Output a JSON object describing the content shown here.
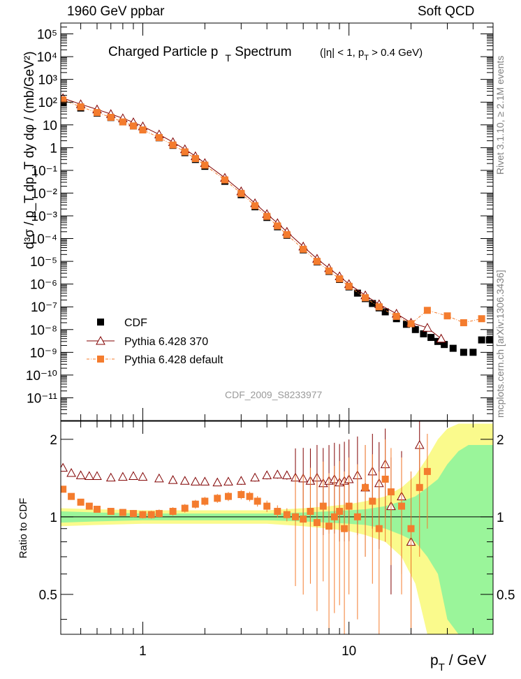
{
  "header": {
    "left": "1960 GeV ppbar",
    "right": "Soft QCD"
  },
  "side_texts": {
    "rivet": "Rivet 3.1.10, ≥ 2.1M events",
    "mcplots": "mcplots.cern.ch [arXiv:1306.3436]"
  },
  "chart_data": [
    {
      "type": "scatter",
      "title": "Charged Particle p_T Spectrum",
      "title_parts": {
        "main": "Charged Particle p",
        "sub": "T",
        "after": " Spectrum",
        "cuts": "(|η| < 1, p",
        "cuts_sub": "T",
        "cuts_after": " > 0.4 GeV)"
      },
      "watermark": "CDF_2009_S8233977",
      "ylabel": "d³σ / p_T dp_T dy dφ / (mb/GeV²)",
      "xscale": "log",
      "yscale": "log",
      "xlim": [
        0.4,
        50
      ],
      "ylim": [
        1e-12,
        300000.0
      ],
      "ytick_labels": [
        "10⁻¹¹",
        "10⁻¹⁰",
        "10⁻⁹",
        "10⁻⁸",
        "10⁻⁷",
        "10⁻⁶",
        "10⁻⁵",
        "10⁻⁴",
        "10⁻³",
        "10⁻²",
        "10⁻¹",
        "1",
        "10",
        "10²",
        "10³",
        "10⁴",
        "10⁵"
      ],
      "legend": {
        "position": "lower-left",
        "entries": [
          "CDF",
          "Pythia 6.428 370",
          "Pythia 6.428 default"
        ]
      },
      "series": [
        {
          "name": "CDF",
          "color": "#000000",
          "marker": "square",
          "x": [
            0.41,
            0.5,
            0.6,
            0.7,
            0.8,
            0.9,
            1.0,
            1.2,
            1.4,
            1.6,
            1.8,
            2.0,
            2.5,
            3.0,
            3.5,
            4.0,
            4.5,
            5.0,
            6.0,
            7.0,
            8.0,
            9.0,
            10.0,
            11.0,
            12.0,
            13.0,
            14.0,
            15.0,
            17.0,
            19.0,
            21.0,
            23.0,
            25.0,
            27.0,
            29.0,
            32.0,
            36.0,
            40.0,
            44.0,
            48.0
          ],
          "y": [
            95,
            55,
            33,
            21,
            13.5,
            9.0,
            6.0,
            2.7,
            1.25,
            0.6,
            0.3,
            0.15,
            0.033,
            0.0085,
            0.0025,
            0.00085,
            0.00033,
            0.00014,
            3.2e-05,
            9.5e-06,
            3.6e-06,
            1.6e-06,
            7.5e-07,
            4e-07,
            2.3e-07,
            1.4e-07,
            9e-08,
            6e-08,
            3e-08,
            1.7e-08,
            1e-08,
            6.5e-09,
            4.5e-09,
            3e-09,
            2.2e-09,
            1.5e-09,
            1e-09,
            1e-09,
            3.5e-09,
            3.5e-09
          ]
        },
        {
          "name": "Pythia 6.428 370",
          "color": "#800000",
          "marker": "open-triangle",
          "x": [
            0.41,
            0.5,
            0.6,
            0.7,
            0.8,
            0.9,
            1.0,
            1.2,
            1.4,
            1.6,
            1.8,
            2.0,
            2.5,
            3.0,
            3.5,
            4.0,
            4.5,
            5.0,
            6.0,
            7.0,
            8.0,
            9.0,
            10.0,
            12.0,
            14.0,
            17.0,
            20.0,
            24.0,
            28.0
          ],
          "y": [
            150,
            81,
            48,
            30,
            19.5,
            13.0,
            8.6,
            3.8,
            1.75,
            0.85,
            0.42,
            0.21,
            0.047,
            0.012,
            0.0036,
            0.0012,
            0.00048,
            0.0002,
            4.5e-05,
            1.3e-05,
            5e-06,
            2.2e-06,
            1e-06,
            3.2e-07,
            1.3e-07,
            5e-08,
            2e-08,
            1.2e-08,
            4e-09
          ]
        },
        {
          "name": "Pythia 6.428 default",
          "color": "#f47c2e",
          "marker": "square",
          "x": [
            0.41,
            0.5,
            0.6,
            0.7,
            0.8,
            0.9,
            1.0,
            1.2,
            1.4,
            1.6,
            1.8,
            2.0,
            2.5,
            3.0,
            3.5,
            4.0,
            4.5,
            5.0,
            6.0,
            7.0,
            8.0,
            9.0,
            10.0,
            12.0,
            14.0,
            17.0,
            20.0,
            24.0,
            30.0,
            36.0,
            44.0
          ],
          "y": [
            125,
            62,
            35,
            21.5,
            13.5,
            9.0,
            6.0,
            2.75,
            1.3,
            0.65,
            0.33,
            0.17,
            0.038,
            0.0097,
            0.0028,
            0.00095,
            0.00036,
            0.00015,
            3.4e-05,
            1e-05,
            3.8e-06,
            1.7e-06,
            8e-07,
            2.5e-07,
            1e-07,
            3.8e-08,
            1.8e-08,
            7e-08,
            4e-08,
            2e-08,
            3e-08
          ]
        }
      ]
    },
    {
      "type": "scatter",
      "ylabel": "Ratio to CDF",
      "xlabel": "p_T / GeV",
      "xlabel_parts": {
        "main": "p",
        "sub": "T",
        "after": " / GeV"
      },
      "xscale": "log",
      "yscale": "log",
      "xlim": [
        0.4,
        50
      ],
      "ylim": [
        0.35,
        2.35
      ],
      "xtick_labels": [
        "1",
        "10"
      ],
      "ytick_labels": [
        "0.5",
        "1",
        "2"
      ],
      "bands": [
        {
          "name": "stat",
          "color": "#9af59a"
        },
        {
          "name": "stat+syst",
          "color": "#fafa8c"
        }
      ],
      "band_data": {
        "x": [
          0.4,
          0.6,
          1.0,
          2.0,
          4.0,
          6.0,
          8.0,
          10.0,
          12.0,
          15.0,
          18.0,
          21.0,
          24.0,
          27.0,
          30.0,
          34.0,
          38.0,
          43.0,
          50.0
        ],
        "inner": [
          0.05,
          0.04,
          0.03,
          0.03,
          0.03,
          0.04,
          0.05,
          0.06,
          0.07,
          0.1,
          0.15,
          0.2,
          0.3,
          0.4,
          0.6,
          0.8,
          0.9,
          0.9,
          0.9
        ],
        "outer": [
          0.08,
          0.07,
          0.06,
          0.06,
          0.06,
          0.08,
          0.1,
          0.12,
          0.15,
          0.2,
          0.3,
          0.45,
          0.7,
          1.0,
          1.2,
          1.3,
          1.3,
          1.3,
          1.3
        ]
      },
      "series": [
        {
          "name": "Pythia 6.428 370",
          "color": "#800000",
          "marker": "open-triangle",
          "x": [
            0.41,
            0.45,
            0.5,
            0.55,
            0.6,
            0.7,
            0.8,
            0.9,
            1.0,
            1.2,
            1.4,
            1.6,
            1.8,
            2.0,
            2.3,
            2.6,
            3.0,
            3.5,
            4.0,
            4.5,
            5.0,
            5.5,
            6.0,
            6.5,
            7.0,
            7.5,
            8.0,
            8.5,
            9.0,
            9.5,
            10.0,
            11.0,
            12.0,
            13.0,
            14.0,
            15.0,
            16.0,
            18.0,
            20.0,
            22.0
          ],
          "y": [
            1.55,
            1.48,
            1.45,
            1.44,
            1.44,
            1.42,
            1.43,
            1.44,
            1.43,
            1.41,
            1.39,
            1.38,
            1.37,
            1.37,
            1.36,
            1.37,
            1.38,
            1.42,
            1.45,
            1.46,
            1.45,
            1.42,
            1.41,
            1.38,
            1.42,
            1.35,
            1.38,
            1.4,
            1.36,
            1.38,
            1.4,
            1.45,
            1.3,
            1.5,
            1.35,
            1.6,
            1.1,
            1.2,
            0.8,
            1.9
          ]
        },
        {
          "name": "Pythia 6.428 default",
          "color": "#f47c2e",
          "marker": "square",
          "x": [
            0.41,
            0.45,
            0.5,
            0.55,
            0.6,
            0.7,
            0.8,
            0.9,
            1.0,
            1.1,
            1.2,
            1.4,
            1.6,
            1.8,
            2.0,
            2.3,
            2.6,
            3.0,
            3.3,
            3.6,
            4.0,
            4.5,
            5.0,
            5.5,
            6.0,
            6.5,
            7.0,
            7.5,
            8.0,
            8.5,
            9.0,
            9.5,
            10.0,
            11.0,
            12.0,
            13.0,
            14.0,
            15.0,
            16.0,
            18.0,
            20.0,
            22.0,
            24.0
          ],
          "y": [
            1.28,
            1.2,
            1.14,
            1.1,
            1.07,
            1.05,
            1.04,
            1.03,
            1.02,
            1.02,
            1.03,
            1.05,
            1.08,
            1.12,
            1.15,
            1.18,
            1.2,
            1.22,
            1.2,
            1.15,
            1.1,
            1.05,
            1.02,
            1.0,
            0.98,
            1.05,
            0.95,
            1.1,
            0.92,
            1.0,
            1.05,
            0.9,
            1.1,
            1.0,
            1.3,
            1.15,
            0.9,
            1.4,
            1.25,
            1.1,
            0.9,
            1.3,
            1.5
          ]
        }
      ]
    }
  ]
}
